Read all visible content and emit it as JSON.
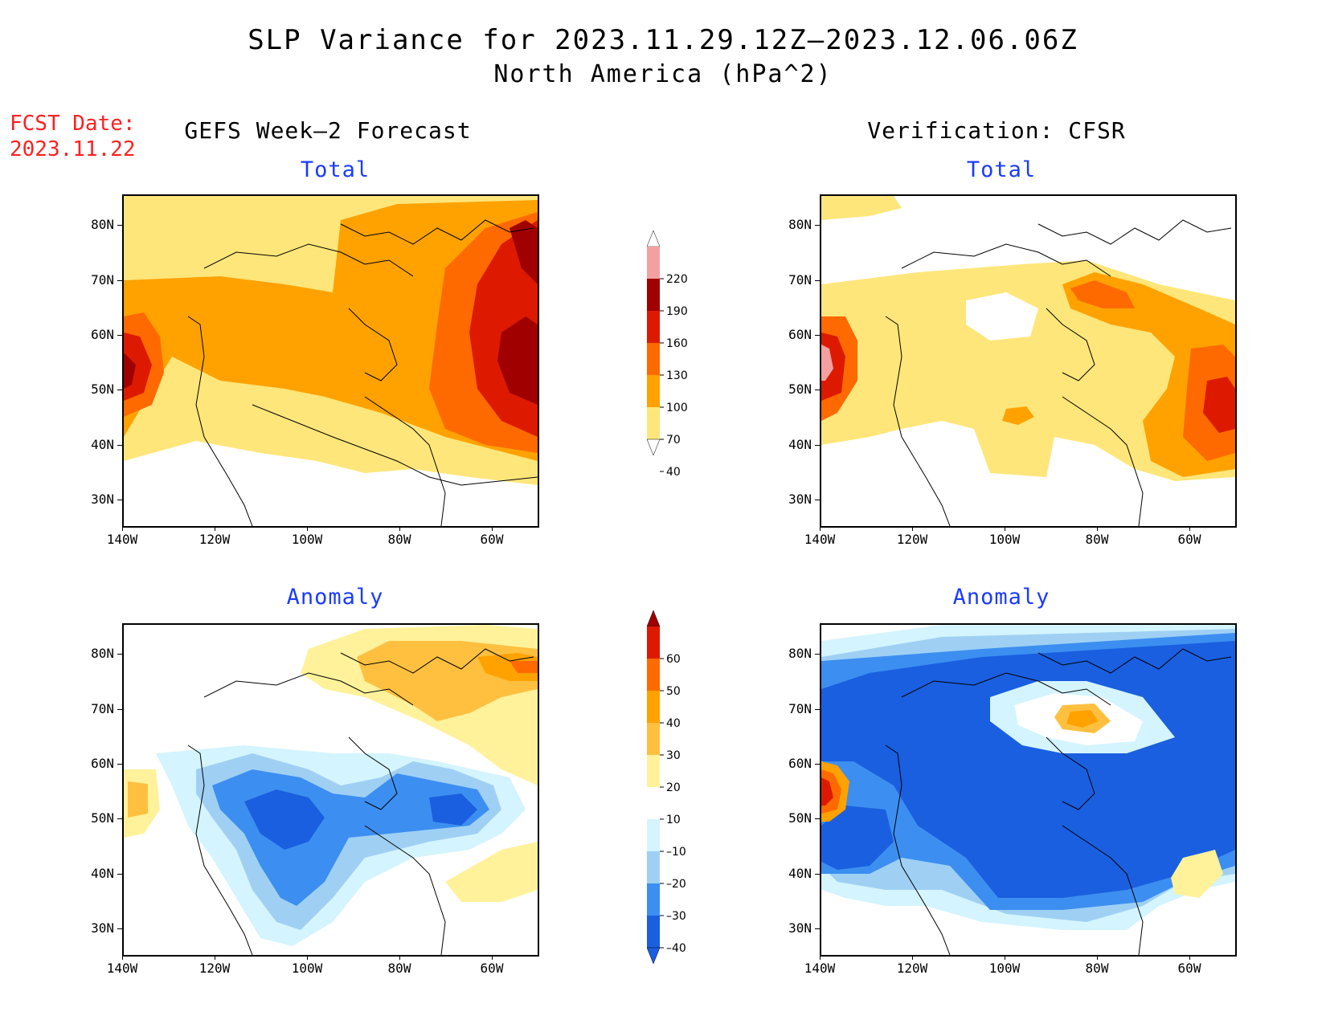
{
  "title": "SLP Variance for 2023.11.29.12Z–2023.12.06.06Z",
  "subtitle": "North America (hPa^2)",
  "fcst_label_line1": "FCST Date:",
  "fcst_label_line2": "2023.11.22",
  "left_column_title": "GEFS Week–2 Forecast",
  "right_column_title": "Verification: CFSR",
  "panels": {
    "tl": {
      "title": "Total"
    },
    "tr": {
      "title": "Total"
    },
    "bl": {
      "title": "Anomaly"
    },
    "br": {
      "title": "Anomaly"
    }
  },
  "lat_labels": [
    "80N",
    "70N",
    "60N",
    "50N",
    "40N",
    "30N"
  ],
  "lon_labels": [
    "140W",
    "120W",
    "100W",
    "80W",
    "60W"
  ],
  "total_colorbar": {
    "levels": [
      "220",
      "190",
      "160",
      "130",
      "100",
      "70",
      "40"
    ],
    "colors": [
      "#fde0e0",
      "#f4a0a0",
      "#a00000",
      "#dd1a00",
      "#ff6a00",
      "#ffa200",
      "#ffe67a"
    ]
  },
  "anomaly_colorbar": {
    "levels": [
      "60",
      "50",
      "40",
      "30",
      "20",
      "10",
      "–10",
      "–20",
      "–30",
      "–40"
    ],
    "colors": [
      "#a00000",
      "#dd1a00",
      "#ff6a00",
      "#ffa200",
      "#ffc040",
      "#fff29a",
      "#ffffff",
      "#d4f4ff",
      "#9fd0f4",
      "#3c8ff0",
      "#1a5fe0"
    ]
  },
  "colors": {
    "fcst": "#ff2020",
    "panel_title": "#1a3bff"
  }
}
